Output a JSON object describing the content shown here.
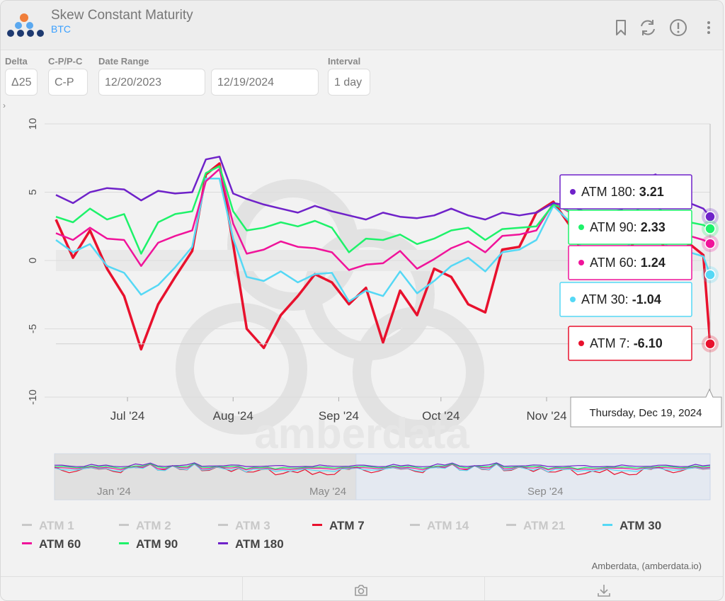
{
  "header": {
    "title": "Skew Constant Maturity",
    "subtitle": "BTC",
    "icons": [
      "bookmark-icon",
      "refresh-icon",
      "info-icon",
      "more-icon"
    ]
  },
  "controls": {
    "delta": {
      "label": "Delta",
      "value": "Δ25"
    },
    "cp": {
      "label": "C-P/P-C",
      "value": "C-P"
    },
    "date_range": {
      "label": "Date Range",
      "start": "12/20/2023",
      "end": "12/19/2024"
    },
    "interval": {
      "label": "Interval",
      "value": "1 day"
    },
    "expander": "›"
  },
  "watermark": "amberdata",
  "credits": "Amberdata, (amberdata.io)",
  "tooltip": "Thursday, Dec 19, 2024",
  "navigator_labels": [
    "Jan '24",
    "May '24",
    "Sep '24"
  ],
  "legend": [
    {
      "label": "ATM 1",
      "color": "#c8c8c8",
      "active": false
    },
    {
      "label": "ATM 2",
      "color": "#c8c8c8",
      "active": false
    },
    {
      "label": "ATM 3",
      "color": "#c8c8c8",
      "active": false
    },
    {
      "label": "ATM 7",
      "color": "#e8112d",
      "active": true
    },
    {
      "label": "ATM 14",
      "color": "#c8c8c8",
      "active": false
    },
    {
      "label": "ATM 21",
      "color": "#c8c8c8",
      "active": false
    },
    {
      "label": "ATM 30",
      "color": "#55d8f5",
      "active": true
    },
    {
      "label": "ATM 60",
      "color": "#f0139a",
      "active": true
    },
    {
      "label": "ATM 90",
      "color": "#1ef26a",
      "active": true
    },
    {
      "label": "ATM 180",
      "color": "#6f22c9",
      "active": true
    }
  ],
  "chart_data": {
    "type": "line",
    "x_start": "2024-06-10",
    "x_end": "2024-12-19",
    "xticks": [
      "Jul '24",
      "Aug '24",
      "Sep '24",
      "Oct '24",
      "Nov '24"
    ],
    "yticks": [
      "10",
      "5",
      "0",
      "-5",
      "-10"
    ],
    "ylim": [
      -10,
      10
    ],
    "series": [
      {
        "name": "ATM 180",
        "color": "#6f22c9",
        "last_label": "ATM 180: 3.21",
        "x": [
          "2024-06-10",
          "2024-06-15",
          "2024-06-20",
          "2024-06-25",
          "2024-06-30",
          "2024-07-05",
          "2024-07-10",
          "2024-07-15",
          "2024-07-20",
          "2024-07-24",
          "2024-07-28",
          "2024-08-01",
          "2024-08-05",
          "2024-08-10",
          "2024-08-15",
          "2024-08-20",
          "2024-08-25",
          "2024-08-30",
          "2024-09-04",
          "2024-09-09",
          "2024-09-14",
          "2024-09-19",
          "2024-09-24",
          "2024-09-29",
          "2024-10-04",
          "2024-10-09",
          "2024-10-14",
          "2024-10-19",
          "2024-10-24",
          "2024-10-29",
          "2024-11-03",
          "2024-11-08",
          "2024-11-13",
          "2024-11-18",
          "2024-11-23",
          "2024-11-28",
          "2024-12-03",
          "2024-12-08",
          "2024-12-13",
          "2024-12-17",
          "2024-12-19"
        ],
        "y": [
          4.8,
          4.2,
          5.0,
          5.3,
          5.2,
          4.4,
          5.1,
          4.9,
          5.0,
          7.4,
          7.6,
          4.9,
          4.5,
          4.1,
          3.8,
          3.5,
          4.0,
          3.6,
          3.3,
          3.0,
          3.5,
          3.2,
          3.1,
          3.3,
          3.8,
          3.3,
          3.0,
          3.5,
          3.3,
          3.5,
          4.2,
          4.0,
          3.5,
          3.5,
          3.7,
          5.8,
          6.3,
          4.5,
          4.2,
          3.8,
          3.21
        ]
      },
      {
        "name": "ATM 90",
        "color": "#1ef26a",
        "last_label": "ATM 90: 2.33",
        "x": [
          "2024-06-10",
          "2024-06-15",
          "2024-06-20",
          "2024-06-25",
          "2024-06-30",
          "2024-07-05",
          "2024-07-10",
          "2024-07-15",
          "2024-07-20",
          "2024-07-24",
          "2024-07-28",
          "2024-08-01",
          "2024-08-05",
          "2024-08-10",
          "2024-08-15",
          "2024-08-20",
          "2024-08-25",
          "2024-08-30",
          "2024-09-04",
          "2024-09-09",
          "2024-09-14",
          "2024-09-19",
          "2024-09-24",
          "2024-09-29",
          "2024-10-04",
          "2024-10-09",
          "2024-10-14",
          "2024-10-19",
          "2024-10-24",
          "2024-10-29",
          "2024-11-03",
          "2024-11-08",
          "2024-11-13",
          "2024-11-18",
          "2024-11-23",
          "2024-11-28",
          "2024-12-03",
          "2024-12-08",
          "2024-12-13",
          "2024-12-17",
          "2024-12-19"
        ],
        "y": [
          3.2,
          2.8,
          3.8,
          3.0,
          3.4,
          0.5,
          2.8,
          3.4,
          3.6,
          6.4,
          6.9,
          3.6,
          2.2,
          2.4,
          2.8,
          2.5,
          2.9,
          2.4,
          0.6,
          1.6,
          1.5,
          1.9,
          1.2,
          1.6,
          2.2,
          2.4,
          1.5,
          2.3,
          2.4,
          2.5,
          4.1,
          3.6,
          2.0,
          2.4,
          2.4,
          3.8,
          4.0,
          3.0,
          2.8,
          2.6,
          2.33
        ]
      },
      {
        "name": "ATM 60",
        "color": "#f0139a",
        "last_label": "ATM 60: 1.24",
        "x": [
          "2024-06-10",
          "2024-06-15",
          "2024-06-20",
          "2024-06-25",
          "2024-06-30",
          "2024-07-05",
          "2024-07-10",
          "2024-07-15",
          "2024-07-20",
          "2024-07-24",
          "2024-07-28",
          "2024-08-01",
          "2024-08-05",
          "2024-08-10",
          "2024-08-15",
          "2024-08-20",
          "2024-08-25",
          "2024-08-30",
          "2024-09-04",
          "2024-09-09",
          "2024-09-14",
          "2024-09-19",
          "2024-09-24",
          "2024-09-29",
          "2024-10-04",
          "2024-10-09",
          "2024-10-14",
          "2024-10-19",
          "2024-10-24",
          "2024-10-29",
          "2024-11-03",
          "2024-11-08",
          "2024-11-13",
          "2024-11-18",
          "2024-11-23",
          "2024-11-28",
          "2024-12-03",
          "2024-12-08",
          "2024-12-13",
          "2024-12-17",
          "2024-12-19"
        ],
        "y": [
          2.0,
          1.5,
          2.4,
          1.6,
          1.5,
          -0.4,
          1.3,
          1.8,
          2.2,
          5.8,
          6.7,
          2.7,
          0.5,
          0.8,
          1.4,
          1.0,
          0.9,
          0.6,
          -0.7,
          -0.3,
          -0.2,
          0.7,
          -0.6,
          0.1,
          0.9,
          1.4,
          0.6,
          1.8,
          1.9,
          2.2,
          4.2,
          3.5,
          1.4,
          1.5,
          1.6,
          3.0,
          3.4,
          2.0,
          1.8,
          1.5,
          1.24
        ]
      },
      {
        "name": "ATM 30",
        "color": "#55d8f5",
        "last_label": "ATM 30: -1.04",
        "x": [
          "2024-06-10",
          "2024-06-15",
          "2024-06-20",
          "2024-06-25",
          "2024-06-30",
          "2024-07-05",
          "2024-07-10",
          "2024-07-15",
          "2024-07-20",
          "2024-07-24",
          "2024-07-28",
          "2024-08-01",
          "2024-08-05",
          "2024-08-10",
          "2024-08-15",
          "2024-08-20",
          "2024-08-25",
          "2024-08-30",
          "2024-09-04",
          "2024-09-09",
          "2024-09-14",
          "2024-09-19",
          "2024-09-24",
          "2024-09-29",
          "2024-10-04",
          "2024-10-09",
          "2024-10-14",
          "2024-10-19",
          "2024-10-24",
          "2024-10-29",
          "2024-11-03",
          "2024-11-08",
          "2024-11-13",
          "2024-11-18",
          "2024-11-23",
          "2024-11-28",
          "2024-12-03",
          "2024-12-08",
          "2024-12-13",
          "2024-12-17",
          "2024-12-19"
        ],
        "y": [
          1.5,
          0.6,
          1.2,
          -0.4,
          -0.9,
          -2.5,
          -1.8,
          -0.5,
          1.0,
          6.0,
          6.0,
          1.6,
          -1.2,
          -1.5,
          -0.8,
          -1.6,
          -1.0,
          -0.9,
          -3.0,
          -2.2,
          -2.6,
          -0.8,
          -2.4,
          -1.5,
          -0.4,
          0.2,
          -0.8,
          0.6,
          0.8,
          1.5,
          4.0,
          2.8,
          -0.2,
          0.5,
          0.5,
          2.0,
          2.2,
          0.5,
          0.6,
          0.3,
          -1.04
        ]
      },
      {
        "name": "ATM 7",
        "color": "#e8112d",
        "last_label": "ATM 7: -6.10",
        "x": [
          "2024-06-10",
          "2024-06-15",
          "2024-06-20",
          "2024-06-25",
          "2024-06-30",
          "2024-07-05",
          "2024-07-10",
          "2024-07-15",
          "2024-07-20",
          "2024-07-24",
          "2024-07-28",
          "2024-08-01",
          "2024-08-05",
          "2024-08-10",
          "2024-08-15",
          "2024-08-20",
          "2024-08-25",
          "2024-08-30",
          "2024-09-04",
          "2024-09-09",
          "2024-09-14",
          "2024-09-19",
          "2024-09-24",
          "2024-09-29",
          "2024-10-04",
          "2024-10-09",
          "2024-10-14",
          "2024-10-19",
          "2024-10-24",
          "2024-10-29",
          "2024-11-03",
          "2024-11-08",
          "2024-11-13",
          "2024-11-18",
          "2024-11-23",
          "2024-11-28",
          "2024-12-03",
          "2024-12-08",
          "2024-12-13",
          "2024-12-17",
          "2024-12-19"
        ],
        "y": [
          3.0,
          0.2,
          2.2,
          -0.6,
          -2.6,
          -6.5,
          -3.2,
          -1.2,
          0.7,
          6.3,
          7.1,
          1.2,
          -5.0,
          -6.4,
          -4.0,
          -2.6,
          -1.0,
          -1.6,
          -3.2,
          -2.0,
          -6.0,
          -2.2,
          -4.0,
          -0.6,
          -1.2,
          -3.2,
          -3.8,
          0.8,
          1.0,
          3.5,
          4.3,
          2.5,
          -0.4,
          -0.2,
          0.0,
          1.8,
          2.0,
          0.0,
          1.2,
          0.4,
          -6.1
        ]
      }
    ]
  }
}
